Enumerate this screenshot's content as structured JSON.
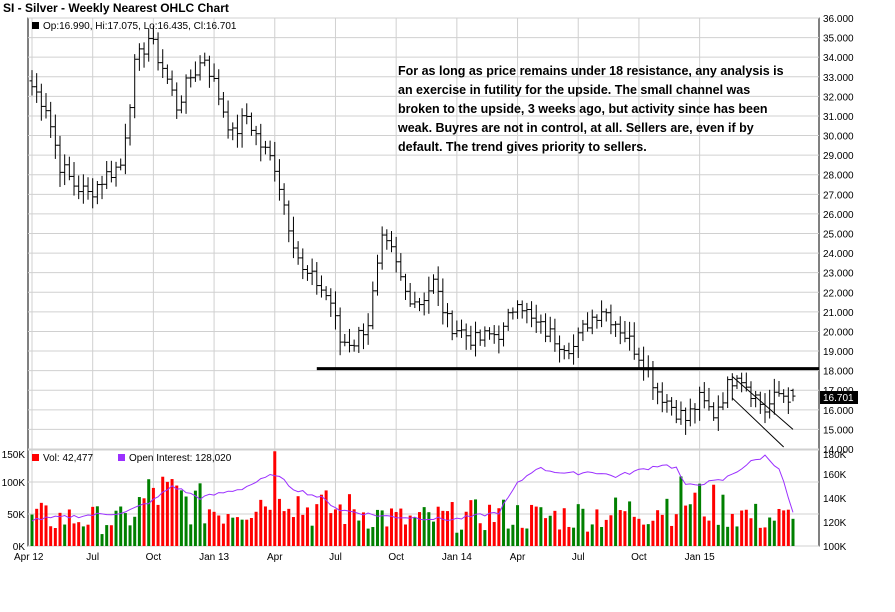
{
  "title": "SI - Silver - Weekly Nearest OHLC Chart",
  "price_legend": "Op:16.990, Hi:17.075, Lo:16.435, Cl:16.701",
  "last_price_label": "16.701",
  "volume_legend": "Vol: 42,477",
  "oi_legend": "Open Interest: 128,020",
  "annotation": "For as long as price remains under 18 resistance, any analysis is an exercise in futility for the upside.  The small channel was broken to the upside, 3 weeks ago, but activity since has been weak.  Buyres are not in control, at all.  Sellers are, even if by default.  The trend gives priority to sellers.",
  "colors": {
    "up_volume": "#008000",
    "down_volume": "#ff0000",
    "open_interest": "#9b30ff",
    "ohlc": "#000000",
    "grid": "#d0d0d0"
  },
  "chart_data": [
    {
      "type": "ohlc",
      "title": "SI - Silver - Weekly Nearest OHLC Chart",
      "x_tick_labels": [
        "Apr 12",
        "Jul",
        "Oct",
        "Jan 13",
        "Apr",
        "Jul",
        "Oct",
        "Jan 14",
        "Apr",
        "Jul",
        "Oct",
        "Jan 15"
      ],
      "y_tick_labels": [
        "36.000",
        "35.000",
        "34.000",
        "33.000",
        "32.000",
        "31.000",
        "30.000",
        "29.000",
        "28.000",
        "27.000",
        "26.000",
        "25.000",
        "24.000",
        "23.000",
        "22.000",
        "21.000",
        "20.000",
        "19.000",
        "18.000",
        "17.000",
        "16.000",
        "15.000",
        "14.000"
      ],
      "ylim": [
        14,
        36
      ],
      "grid": true,
      "last_bar": {
        "open": 16.99,
        "high": 17.075,
        "low": 16.435,
        "close": 16.701
      },
      "path_anchors": [
        [
          0,
          32.5
        ],
        [
          3,
          31.5
        ],
        [
          6,
          28.5
        ],
        [
          9,
          27.5
        ],
        [
          12,
          27.0
        ],
        [
          16,
          28.0
        ],
        [
          19,
          28.5
        ],
        [
          22,
          33.5
        ],
        [
          25,
          35.0
        ],
        [
          28,
          33.5
        ],
        [
          31,
          31.5
        ],
        [
          34,
          33.0
        ],
        [
          37,
          34.0
        ],
        [
          40,
          32.0
        ],
        [
          43,
          30.0
        ],
        [
          46,
          31.0
        ],
        [
          49,
          29.5
        ],
        [
          52,
          28.5
        ],
        [
          55,
          25.5
        ],
        [
          58,
          23.0
        ],
        [
          61,
          22.5
        ],
        [
          64,
          21.5
        ],
        [
          66,
          19.5
        ],
        [
          69,
          19.5
        ],
        [
          72,
          20.5
        ],
        [
          75,
          24.5
        ],
        [
          77,
          24.0
        ],
        [
          80,
          22.0
        ],
        [
          83,
          21.5
        ],
        [
          86,
          22.5
        ],
        [
          89,
          20.5
        ],
        [
          92,
          20.0
        ],
        [
          95,
          19.5
        ],
        [
          98,
          19.8
        ],
        [
          101,
          20.0
        ],
        [
          104,
          21.8
        ],
        [
          107,
          20.5
        ],
        [
          110,
          20.0
        ],
        [
          113,
          19.5
        ],
        [
          116,
          19.2
        ],
        [
          119,
          20.5
        ],
        [
          122,
          21.2
        ],
        [
          125,
          20.5
        ],
        [
          128,
          19.5
        ],
        [
          131,
          18.5
        ],
        [
          134,
          17.0
        ],
        [
          137,
          16.2
        ],
        [
          140,
          15.5
        ],
        [
          143,
          16.5
        ],
        [
          146,
          15.8
        ],
        [
          149,
          17.2
        ],
        [
          151,
          18.0
        ],
        [
          154,
          17.0
        ],
        [
          157,
          16.0
        ],
        [
          160,
          16.8
        ],
        [
          163,
          16.7
        ]
      ],
      "support_line": {
        "price": 18.1,
        "x_start_week": 61,
        "x_end_week": 163
      },
      "channel_lines": [
        {
          "from": [
            150,
            17.7
          ],
          "to": [
            163,
            15.0
          ]
        },
        {
          "from": [
            150,
            16.6
          ],
          "to": [
            161,
            14.1
          ]
        }
      ]
    },
    {
      "type": "bar",
      "series": [
        {
          "name": "Vol",
          "legend": "Vol: 42,477"
        },
        {
          "name": "Open Interest",
          "legend": "Open Interest: 128,020"
        }
      ],
      "y_tick_labels": [
        "150K",
        "100K",
        "50K",
        "0K"
      ],
      "y2_tick_labels": [
        "180K",
        "160K",
        "140K",
        "120K",
        "100K"
      ],
      "ylim": [
        0,
        150000
      ],
      "y2lim": [
        100000,
        180000
      ],
      "last_volume": 42477,
      "last_open_interest": 128020,
      "volume_level_anchors": [
        [
          0,
          45000
        ],
        [
          20,
          40000
        ],
        [
          24,
          70000
        ],
        [
          26,
          85000
        ],
        [
          40,
          55000
        ],
        [
          50,
          75000
        ],
        [
          52,
          125000
        ],
        [
          58,
          60000
        ],
        [
          70,
          55000
        ],
        [
          80,
          40000
        ],
        [
          100,
          50000
        ],
        [
          110,
          45000
        ],
        [
          130,
          55000
        ],
        [
          140,
          75000
        ],
        [
          155,
          45000
        ],
        [
          163,
          42477
        ]
      ],
      "oi_anchors": [
        [
          0,
          122000
        ],
        [
          20,
          128000
        ],
        [
          26,
          138000
        ],
        [
          30,
          150000
        ],
        [
          36,
          140000
        ],
        [
          45,
          148000
        ],
        [
          52,
          160000
        ],
        [
          56,
          148000
        ],
        [
          62,
          140000
        ],
        [
          66,
          130000
        ],
        [
          75,
          125000
        ],
        [
          90,
          122000
        ],
        [
          100,
          128000
        ],
        [
          104,
          152000
        ],
        [
          108,
          165000
        ],
        [
          115,
          160000
        ],
        [
          120,
          162000
        ],
        [
          125,
          158000
        ],
        [
          130,
          163000
        ],
        [
          135,
          168000
        ],
        [
          138,
          165000
        ],
        [
          140,
          150000
        ],
        [
          148,
          155000
        ],
        [
          154,
          170000
        ],
        [
          157,
          175000
        ],
        [
          160,
          165000
        ],
        [
          163,
          128020
        ]
      ]
    }
  ]
}
